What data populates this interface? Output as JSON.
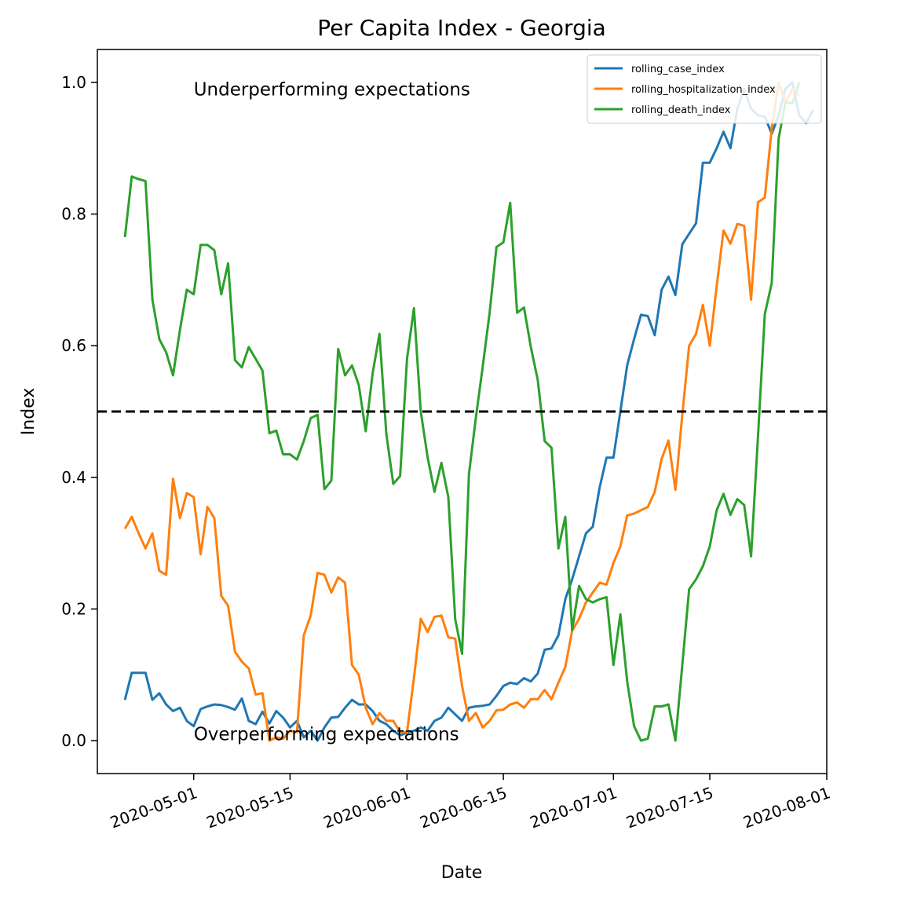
{
  "chart_data": {
    "type": "line",
    "title": "Per Capita Index - Georgia",
    "xlabel": "Date",
    "ylabel": "Index",
    "xlim": [
      "2020-04-17",
      "2020-08-01"
    ],
    "ylim": [
      -0.05,
      1.05
    ],
    "x_ticks": [
      "2020-05-01",
      "2020-05-15",
      "2020-06-01",
      "2020-06-15",
      "2020-07-01",
      "2020-07-15",
      "2020-08-01"
    ],
    "x_tick_labels": [
      "2020-05-01",
      "2020-05-15",
      "2020-06-01",
      "2020-06-15",
      "2020-07-01",
      "2020-07-15",
      "2020-08-01"
    ],
    "y_ticks": [
      0.0,
      0.2,
      0.4,
      0.6,
      0.8,
      1.0
    ],
    "y_tick_labels": [
      "0.0",
      "0.2",
      "0.4",
      "0.6",
      "0.8",
      "1.0"
    ],
    "legend_position": "top-right",
    "grid": false,
    "reference_line": {
      "y": 0.5,
      "style": "dashed",
      "color": "#000000"
    },
    "annotations": [
      {
        "text": "Underperforming expectations",
        "x": "2020-05-01",
        "y": 0.99
      },
      {
        "text": "Overperforming expectations",
        "x": "2020-05-01",
        "y": 0.01
      }
    ],
    "start_date": "2020-04-21",
    "series": [
      {
        "name": "rolling_case_index",
        "color": "#1f77b4",
        "values": [
          0.062,
          0.103,
          0.103,
          0.103,
          0.062,
          0.072,
          0.055,
          0.045,
          0.05,
          0.03,
          0.022,
          0.048,
          0.052,
          0.055,
          0.054,
          0.051,
          0.047,
          0.064,
          0.03,
          0.025,
          0.044,
          0.026,
          0.045,
          0.035,
          0.02,
          0.03,
          0.005,
          0.015,
          0.0,
          0.02,
          0.035,
          0.036,
          0.05,
          0.062,
          0.055,
          0.055,
          0.045,
          0.03,
          0.025,
          0.015,
          0.008,
          0.012,
          0.015,
          0.02,
          0.015,
          0.03,
          0.035,
          0.05,
          0.04,
          0.03,
          0.05,
          0.052,
          0.053,
          0.055,
          0.068,
          0.083,
          0.088,
          0.086,
          0.095,
          0.09,
          0.102,
          0.138,
          0.14,
          0.16,
          0.215,
          0.245,
          0.28,
          0.315,
          0.325,
          0.385,
          0.43,
          0.43,
          0.5,
          0.57,
          0.61,
          0.647,
          0.645,
          0.616,
          0.685,
          0.705,
          0.677,
          0.754,
          0.77,
          0.786,
          0.878,
          0.878,
          0.9,
          0.925,
          0.9,
          0.96,
          0.99,
          0.96,
          0.95,
          0.948,
          0.922,
          0.95,
          0.99,
          1.0,
          0.95,
          0.938,
          0.958
        ]
      },
      {
        "name": "rolling_hospitalization_index",
        "color": "#ff7f0e",
        "values": [
          0.322,
          0.34,
          0.315,
          0.292,
          0.315,
          0.258,
          0.252,
          0.398,
          0.338,
          0.376,
          0.37,
          0.283,
          0.355,
          0.338,
          0.22,
          0.205,
          0.135,
          0.12,
          0.11,
          0.07,
          0.072,
          0.0,
          0.005,
          0.003,
          0.015,
          0.013,
          0.16,
          0.19,
          0.255,
          0.252,
          0.225,
          0.248,
          0.24,
          0.115,
          0.1,
          0.05,
          0.025,
          0.042,
          0.03,
          0.03,
          0.013,
          0.013,
          0.095,
          0.185,
          0.165,
          0.188,
          0.19,
          0.157,
          0.155,
          0.083,
          0.03,
          0.042,
          0.02,
          0.03,
          0.046,
          0.047,
          0.055,
          0.058,
          0.05,
          0.063,
          0.063,
          0.077,
          0.063,
          0.088,
          0.112,
          0.167,
          0.185,
          0.21,
          0.225,
          0.24,
          0.237,
          0.27,
          0.295,
          0.342,
          0.345,
          0.35,
          0.355,
          0.378,
          0.428,
          0.456,
          0.381,
          0.495,
          0.6,
          0.618,
          0.662,
          0.6,
          0.69,
          0.775,
          0.755,
          0.785,
          0.782,
          0.67,
          0.818,
          0.825,
          0.93,
          1.0,
          0.97,
          0.99,
          0.98
        ]
      },
      {
        "name": "rolling_death_index",
        "color": "#2ca02c",
        "values": [
          0.765,
          0.857,
          0.853,
          0.85,
          0.67,
          0.61,
          0.59,
          0.555,
          0.624,
          0.685,
          0.678,
          0.753,
          0.753,
          0.745,
          0.678,
          0.725,
          0.578,
          0.567,
          0.598,
          0.58,
          0.562,
          0.467,
          0.471,
          0.435,
          0.435,
          0.427,
          0.455,
          0.49,
          0.495,
          0.382,
          0.395,
          0.595,
          0.555,
          0.57,
          0.54,
          0.47,
          0.558,
          0.618,
          0.465,
          0.39,
          0.402,
          0.58,
          0.657,
          0.5,
          0.43,
          0.378,
          0.422,
          0.37,
          0.185,
          0.132,
          0.405,
          0.49,
          0.568,
          0.65,
          0.75,
          0.757,
          0.817,
          0.65,
          0.658,
          0.598,
          0.548,
          0.455,
          0.445,
          0.292,
          0.34,
          0.168,
          0.235,
          0.215,
          0.21,
          0.215,
          0.218,
          0.115,
          0.192,
          0.09,
          0.022,
          0.0,
          0.003,
          0.052,
          0.052,
          0.055,
          0.0,
          0.115,
          0.23,
          0.245,
          0.265,
          0.295,
          0.35,
          0.375,
          0.343,
          0.367,
          0.358,
          0.28,
          0.462,
          0.648,
          0.695,
          0.915,
          0.97,
          0.968,
          1.0
        ]
      }
    ]
  }
}
